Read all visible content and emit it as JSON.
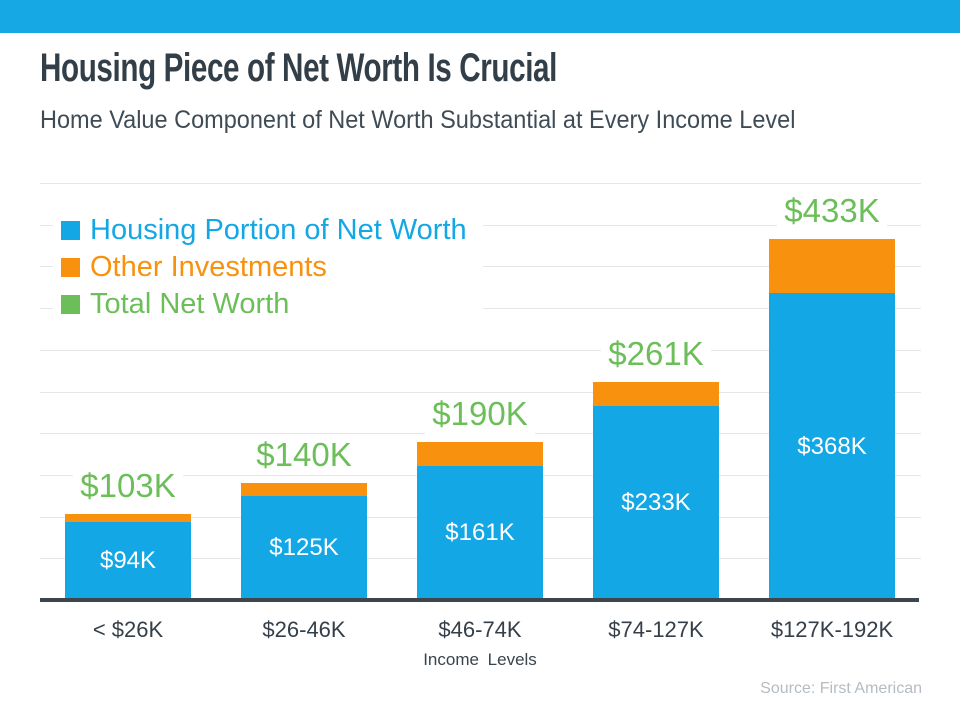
{
  "header": {
    "title": "Housing Piece of Net Worth Is Crucial",
    "subtitle": "Home Value Component of Net Worth Substantial at Every Income Level"
  },
  "colors": {
    "accent_bar": "#16a8e4",
    "housing_blue": "#14a7e5",
    "other_orange": "#f8910d",
    "total_green": "#6cbe59",
    "grid": "#e4e7ea",
    "axis": "#3e454d"
  },
  "chart_data": {
    "type": "bar",
    "stacked": true,
    "title": "Housing Piece of Net Worth Is Crucial",
    "subtitle": "Home Value Component of Net Worth Substantial at Every Income Level",
    "categories": [
      "< $26K",
      "$26-46K",
      "$46-74K",
      "$74-127K",
      "$127K-192K"
    ],
    "series": [
      {
        "name": "Housing Portion of Net Worth",
        "color": "#14a7e5",
        "values": [
          94,
          125,
          161,
          233,
          368
        ]
      },
      {
        "name": "Other Investments",
        "color": "#f8910d",
        "values": [
          9,
          15,
          29,
          28,
          65
        ]
      }
    ],
    "totals": [
      103,
      140,
      190,
      261,
      433
    ],
    "total_labels": [
      "$103K",
      "$140K",
      "$190K",
      "$261K",
      "$433K"
    ],
    "housing_labels": [
      "$94K",
      "$125K",
      "$161K",
      "$233K",
      "$368K"
    ],
    "legend": [
      {
        "label": "Housing Portion of Net Worth",
        "color": "#14a7e5"
      },
      {
        "label": "Other Investments",
        "color": "#f8910d"
      },
      {
        "label": "Total Net Worth",
        "color": "#6cbe59"
      }
    ],
    "legend_position": "upper-left",
    "xlabel": "Income Levels",
    "ylabel": "",
    "ylim": [
      0,
      500
    ],
    "gridline_step": 50,
    "grid": true,
    "total_label_color": "#6cbe59",
    "value_label_color": "#ffffff"
  },
  "footer": {
    "source": "Source: First American"
  }
}
